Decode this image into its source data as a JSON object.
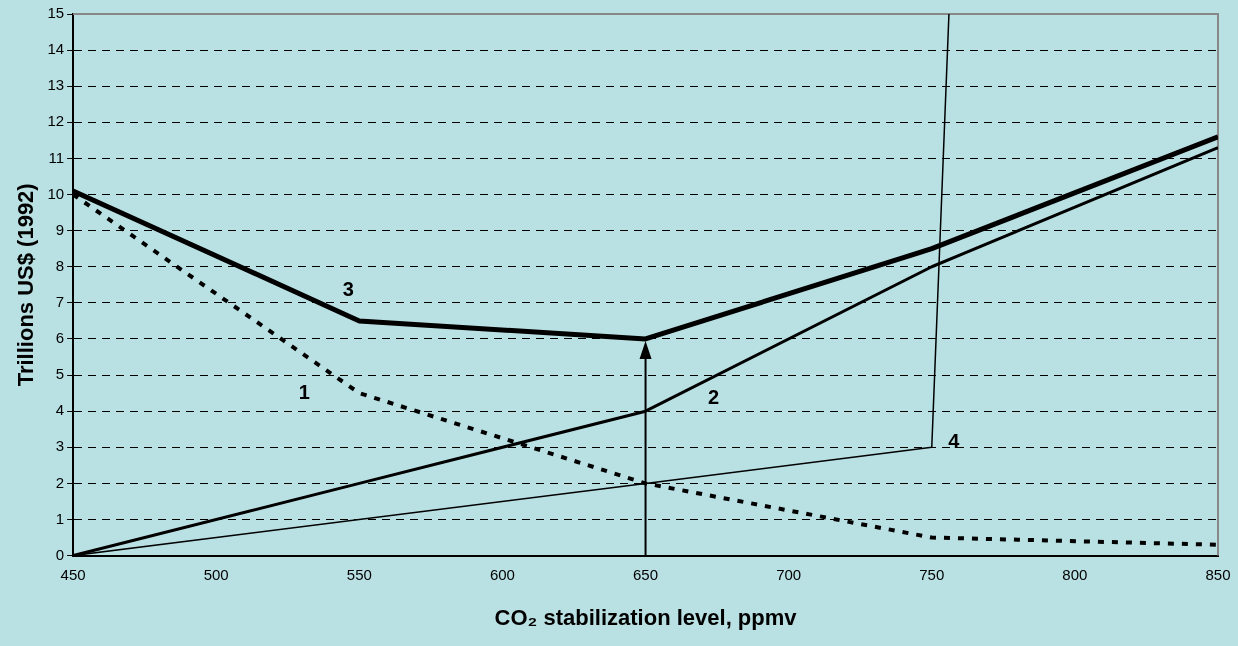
{
  "chart_data": {
    "type": "line",
    "xlabel": "CO₂ stabilization level, ppmv",
    "ylabel": "Trillions US$ (1992)",
    "xlim": [
      450,
      850
    ],
    "xticks": [
      450,
      500,
      550,
      600,
      650,
      700,
      750,
      800,
      850
    ],
    "ylim": [
      0,
      15
    ],
    "yticks": [
      0,
      1,
      2,
      3,
      4,
      5,
      6,
      7,
      8,
      9,
      10,
      11,
      12,
      13,
      14,
      15
    ],
    "grid": "y",
    "legend": false,
    "series": [
      {
        "name": "1",
        "color": "#000000",
        "line_style": "dotted",
        "x": [
          450,
          550,
          650,
          750,
          850
        ],
        "values": [
          10,
          4.5,
          2,
          0.5,
          0.3
        ]
      },
      {
        "name": "2",
        "color": "#000000",
        "x": [
          450,
          550,
          650,
          750,
          850
        ],
        "values": [
          0,
          2,
          4,
          8,
          11.3
        ]
      },
      {
        "name": "3",
        "color": "#000000",
        "x": [
          450,
          550,
          650,
          750,
          850
        ],
        "values": [
          10.1,
          6.5,
          6,
          8.5,
          11.6
        ]
      },
      {
        "name": "4",
        "color": "#000000",
        "x": [
          450,
          650,
          750,
          756
        ],
        "values": [
          0,
          2,
          3,
          15
        ]
      }
    ]
  }
}
